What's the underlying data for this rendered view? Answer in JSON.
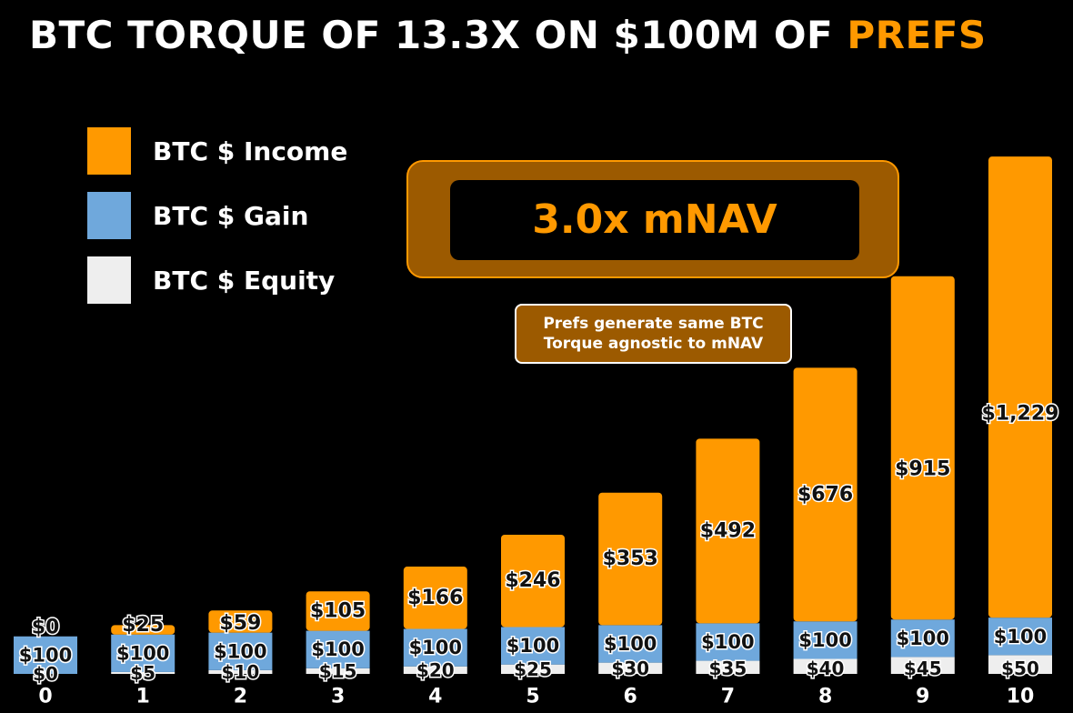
{
  "title": {
    "main": "BTC TORQUE OF 13.3X ON $100M OF ",
    "accent": "PREFS"
  },
  "legend": [
    {
      "label": "BTC $ Income",
      "color": "#FF9900"
    },
    {
      "label": "BTC $ Gain",
      "color": "#6FA8DC"
    },
    {
      "label": "BTC $ Equity",
      "color": "#EEEEEE"
    }
  ],
  "callout": {
    "mnav": "3.0x mNAV",
    "note_line1": "Prefs generate same BTC",
    "note_line2": "Torque agnostic to mNAV"
  },
  "colors": {
    "income": "#FF9900",
    "gain": "#6FA8DC",
    "equity": "#EEEEEE",
    "background": "#000000"
  },
  "chart_data": {
    "type": "bar",
    "stacked": true,
    "categories": [
      "0",
      "1",
      "2",
      "3",
      "4",
      "5",
      "6",
      "7",
      "8",
      "9",
      "10"
    ],
    "series": [
      {
        "name": "BTC $ Equity",
        "values": [
          0,
          5,
          10,
          15,
          20,
          25,
          30,
          35,
          40,
          45,
          50
        ],
        "labels": [
          "$0",
          "$5",
          "$10",
          "$15",
          "$20",
          "$25",
          "$30",
          "$35",
          "$40",
          "$45",
          "$50"
        ]
      },
      {
        "name": "BTC $ Gain",
        "values": [
          100,
          100,
          100,
          100,
          100,
          100,
          100,
          100,
          100,
          100,
          100
        ],
        "labels": [
          "$100",
          "$100",
          "$100",
          "$100",
          "$100",
          "$100",
          "$100",
          "$100",
          "$100",
          "$100",
          "$100"
        ]
      },
      {
        "name": "BTC $ Income",
        "values": [
          0,
          25,
          59,
          105,
          166,
          246,
          353,
          492,
          676,
          915,
          1229
        ],
        "labels": [
          "$0",
          "$25",
          "$59",
          "$105",
          "$166",
          "$246",
          "$353",
          "$492",
          "$676",
          "$915",
          "$1,229"
        ]
      }
    ],
    "grid": false,
    "legend_position": "top-left"
  }
}
